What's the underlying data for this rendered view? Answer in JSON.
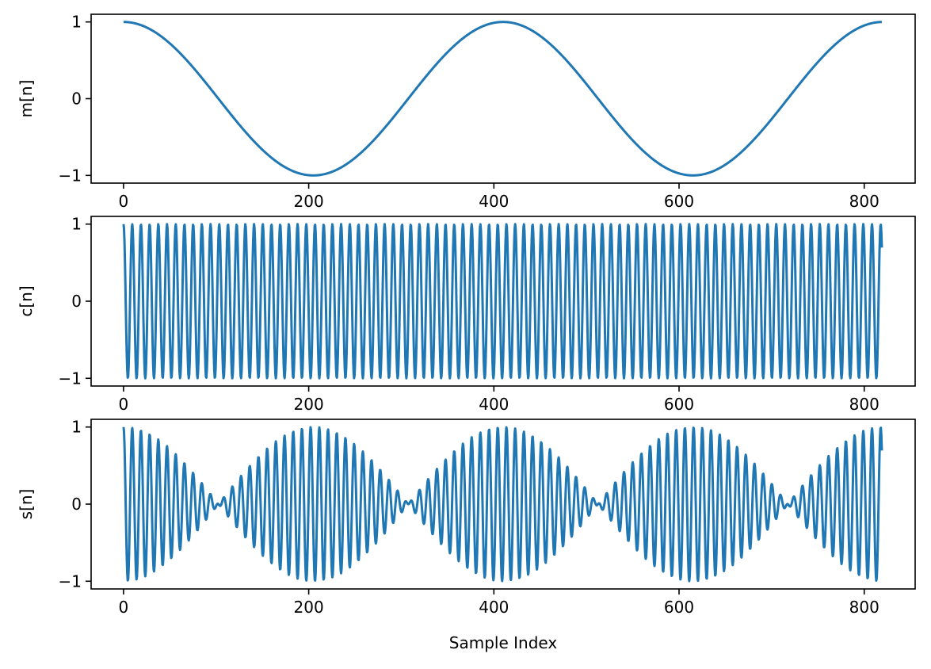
{
  "chart_data": [
    {
      "type": "line",
      "ylabel": "m[n]",
      "xlabel": "",
      "xlim": [
        -35,
        855
      ],
      "ylim": [
        -1.1,
        1.1
      ],
      "xticks": [
        0,
        200,
        400,
        600,
        800
      ],
      "yticks": [
        -1,
        0,
        1
      ],
      "xtick_labels": [
        "0",
        "200",
        "400",
        "600",
        "800"
      ],
      "ytick_labels": [
        "−1",
        "0",
        "1"
      ],
      "grid": false,
      "series": [
        {
          "formula": "cos(2*pi*n/410)",
          "n_range": [
            0,
            819
          ],
          "color": "#1f77b4"
        }
      ]
    },
    {
      "type": "line",
      "ylabel": "c[n]",
      "xlabel": "",
      "xlim": [
        -35,
        855
      ],
      "ylim": [
        -1.1,
        1.1
      ],
      "xticks": [
        0,
        200,
        400,
        600,
        800
      ],
      "yticks": [
        -1,
        0,
        1
      ],
      "xtick_labels": [
        "0",
        "200",
        "400",
        "600",
        "800"
      ],
      "ytick_labels": [
        "−1",
        "0",
        "1"
      ],
      "grid": false,
      "series": [
        {
          "formula": "cos(2*pi*n/9.4)",
          "n_range": [
            0,
            819
          ],
          "color": "#1f77b4"
        }
      ]
    },
    {
      "type": "line",
      "ylabel": "s[n]",
      "xlabel": "Sample Index",
      "xlim": [
        -35,
        855
      ],
      "ylim": [
        -1.1,
        1.1
      ],
      "xticks": [
        0,
        200,
        400,
        600,
        800
      ],
      "yticks": [
        -1,
        0,
        1
      ],
      "xtick_labels": [
        "0",
        "200",
        "400",
        "600",
        "800"
      ],
      "ytick_labels": [
        "−1",
        "0",
        "1"
      ],
      "grid": false,
      "series": [
        {
          "formula": "m[n]*c[n]",
          "n_range": [
            0,
            819
          ],
          "color": "#1f77b4"
        }
      ]
    }
  ]
}
